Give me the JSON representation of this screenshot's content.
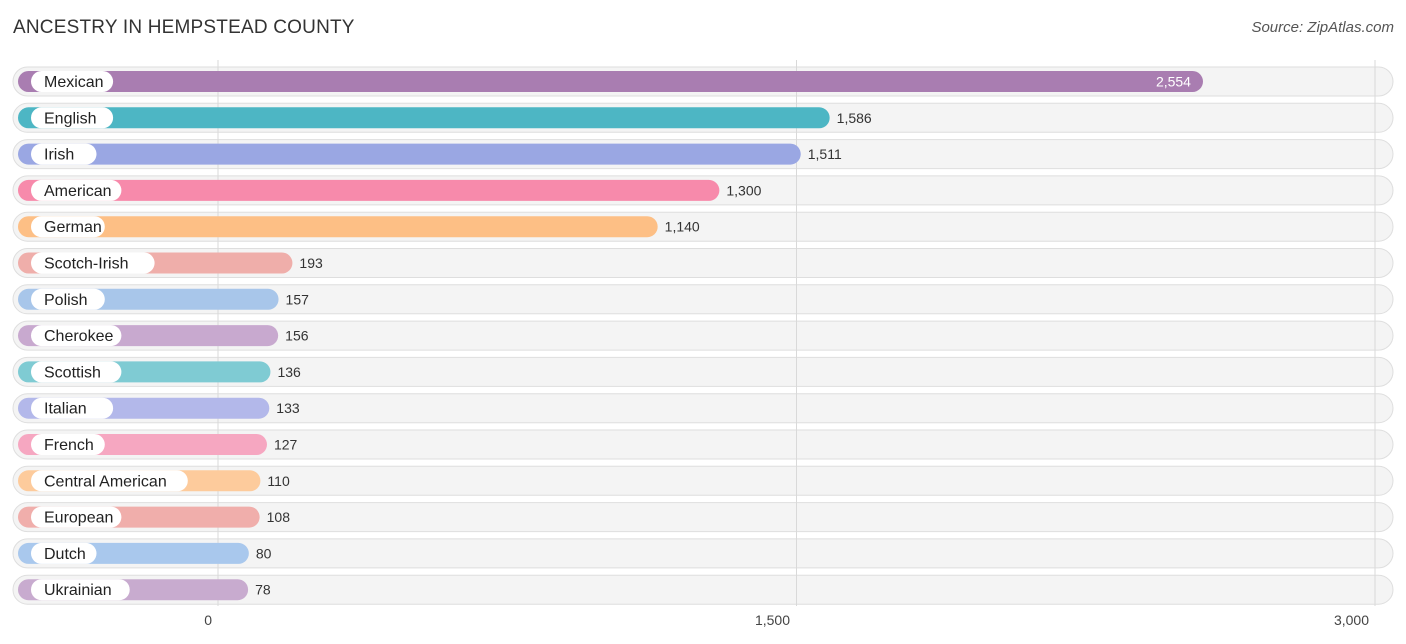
{
  "header": {
    "title": "ANCESTRY IN HEMPSTEAD COUNTY",
    "source": "Source: ZipAtlas.com"
  },
  "chart_data": {
    "type": "bar",
    "orientation": "horizontal",
    "title": "ANCESTRY IN HEMPSTEAD COUNTY",
    "xlim": [
      0,
      3000
    ],
    "ticks": [
      0,
      1500,
      3000
    ],
    "tick_labels": [
      "0",
      "1,500",
      "3,000"
    ],
    "grid": true,
    "categories": [
      "Mexican",
      "English",
      "Irish",
      "American",
      "German",
      "Scotch-Irish",
      "Polish",
      "Cherokee",
      "Scottish",
      "Italian",
      "French",
      "Central American",
      "European",
      "Dutch",
      "Ukrainian"
    ],
    "values": [
      2554,
      1586,
      1511,
      1300,
      1140,
      193,
      157,
      156,
      136,
      133,
      127,
      110,
      108,
      80,
      78
    ],
    "value_labels": [
      "2,554",
      "1,586",
      "1,511",
      "1,300",
      "1,140",
      "193",
      "157",
      "156",
      "136",
      "133",
      "127",
      "110",
      "108",
      "80",
      "78"
    ],
    "colors": [
      "#a97db1",
      "#4db6c4",
      "#9aa7e3",
      "#f78aab",
      "#fdbf85",
      "#efaeaa",
      "#a8c6ea",
      "#c8a9cf",
      "#7fcbd3",
      "#b3b8ea",
      "#f6a7c1",
      "#fdcb9c",
      "#f0aeab",
      "#a9c8ed",
      "#c8abcf"
    ]
  }
}
